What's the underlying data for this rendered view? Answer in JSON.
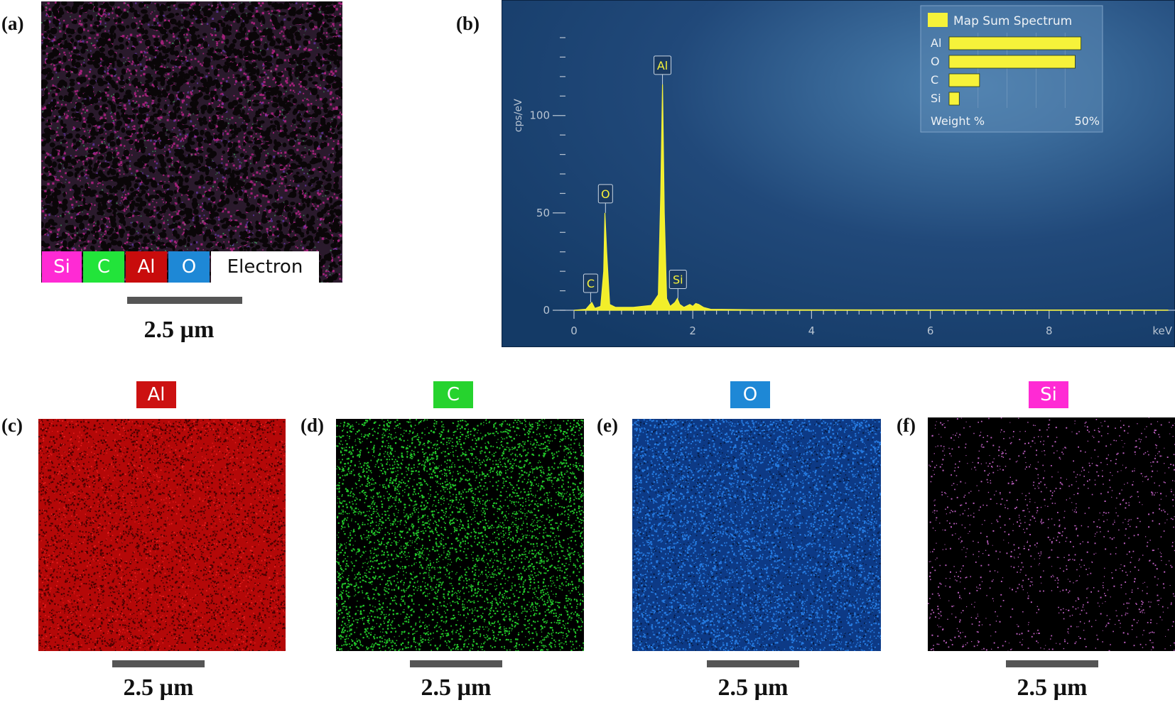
{
  "panels": {
    "a": "(a)",
    "b": "(b)",
    "c": "(c)",
    "d": "(d)",
    "e": "(e)",
    "f": "(f)"
  },
  "scale": "2.5 µm",
  "overlay_legend": [
    {
      "label": "Si",
      "color": "#ff2ad4"
    },
    {
      "label": "C",
      "color": "#22e43a"
    },
    {
      "label": "Al",
      "color": "#c80c0c"
    },
    {
      "label": "O",
      "color": "#1e88d6"
    },
    {
      "label": "Electron",
      "color": "#ffffff"
    }
  ],
  "maps": [
    {
      "tag": "Al",
      "color": "#cc1111"
    },
    {
      "tag": "C",
      "color": "#26d32e"
    },
    {
      "tag": "O",
      "color": "#1f6fd0"
    },
    {
      "tag": "Si",
      "color": "#ff2ad4"
    }
  ],
  "chart_data": {
    "type": "line",
    "xlabel": "keV",
    "ylabel": "cps/eV",
    "xlim": [
      0,
      10
    ],
    "ylim": [
      0,
      140
    ],
    "x_ticks": [
      "0",
      "2",
      "4",
      "6",
      "8"
    ],
    "y_ticks": [
      "0",
      "50",
      "100"
    ],
    "series": [
      {
        "x": [
          0,
          0.2,
          0.27,
          0.3,
          0.35,
          0.45,
          0.5,
          0.52,
          0.55,
          0.6,
          0.7,
          1.0,
          1.3,
          1.42,
          1.46,
          1.49,
          1.52,
          1.56,
          1.62,
          1.7,
          1.74,
          1.78,
          1.85,
          1.95,
          2.0,
          2.05,
          2.1,
          2.18,
          2.3,
          3.0,
          5.0,
          10.0
        ],
        "values": [
          0,
          0.5,
          3,
          4,
          1,
          2,
          20,
          50,
          30,
          3,
          1.5,
          1.5,
          2.5,
          8,
          60,
          116,
          50,
          6,
          2,
          4,
          6,
          3,
          1.5,
          3,
          2,
          3.5,
          3,
          1.5,
          0.5,
          0.3,
          0.2,
          0.1
        ]
      }
    ],
    "peak_labels": [
      {
        "label": "C",
        "x": 0.28,
        "y": 4
      },
      {
        "label": "O",
        "x": 0.53,
        "y": 50
      },
      {
        "label": "Al",
        "x": 1.49,
        "y": 116
      },
      {
        "label": "Si",
        "x": 1.75,
        "y": 6
      }
    ],
    "inset": {
      "title": "Map Sum Spectrum",
      "elements": [
        "Al",
        "O",
        "C",
        "Si"
      ],
      "weight_percent": [
        45.5,
        43.5,
        10.5,
        3.5
      ],
      "axis_label": "Weight %",
      "axis_max_label": "50%",
      "axis_max": 50
    }
  }
}
